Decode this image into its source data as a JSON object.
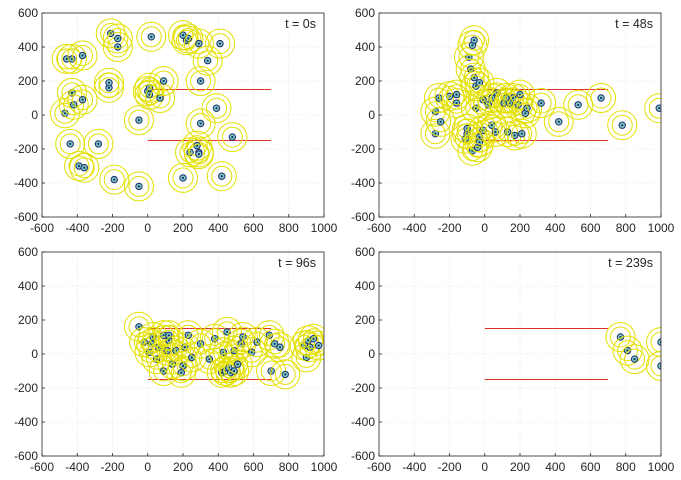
{
  "chart_data": [
    {
      "type": "scatter",
      "title": "t = 0s",
      "xlim": [
        -600,
        1000
      ],
      "ylim": [
        -600,
        600
      ],
      "xticks": [
        "-600",
        "-400",
        "-200",
        "0",
        "200",
        "400",
        "600",
        "800",
        "1000"
      ],
      "yticks": [
        "600",
        "400",
        "200",
        "0",
        "-200",
        "-400",
        "-600"
      ],
      "grid": true,
      "boundary_lines": [
        {
          "x": [
            0,
            700
          ],
          "y": 150
        },
        {
          "x": [
            0,
            700
          ],
          "y": -150
        }
      ],
      "points": [
        [
          -470,
          10
        ],
        [
          -460,
          330
        ],
        [
          -430,
          330
        ],
        [
          -440,
          -170
        ],
        [
          -430,
          130
        ],
        [
          -420,
          60
        ],
        [
          -390,
          -300
        ],
        [
          -360,
          -310
        ],
        [
          -370,
          90
        ],
        [
          -370,
          350
        ],
        [
          -280,
          -170
        ],
        [
          -220,
          160
        ],
        [
          -220,
          190
        ],
        [
          -210,
          480
        ],
        [
          -170,
          400
        ],
        [
          -170,
          450
        ],
        [
          -190,
          -380
        ],
        [
          -50,
          -420
        ],
        [
          -50,
          -30
        ],
        [
          0,
          140
        ],
        [
          10,
          160
        ],
        [
          10,
          120
        ],
        [
          20,
          460
        ],
        [
          70,
          100
        ],
        [
          90,
          200
        ],
        [
          200,
          -370
        ],
        [
          200,
          470
        ],
        [
          220,
          440
        ],
        [
          230,
          450
        ],
        [
          240,
          -220
        ],
        [
          290,
          -220
        ],
        [
          290,
          420
        ],
        [
          280,
          -180
        ],
        [
          290,
          -230
        ],
        [
          300,
          200
        ],
        [
          300,
          -50
        ],
        [
          340,
          320
        ],
        [
          390,
          40
        ],
        [
          410,
          420
        ],
        [
          420,
          -360
        ],
        [
          480,
          -130
        ]
      ]
    },
    {
      "type": "scatter",
      "title": "t = 48s",
      "xlim": [
        -600,
        1000
      ],
      "ylim": [
        -600,
        600
      ],
      "xticks": [
        "-600",
        "-400",
        "-200",
        "0",
        "200",
        "400",
        "600",
        "800",
        "1000"
      ],
      "yticks": [
        "600",
        "400",
        "200",
        "0",
        "-200",
        "-400",
        "-600"
      ],
      "grid": true,
      "boundary_lines": [
        {
          "x": [
            0,
            700
          ],
          "y": 150
        },
        {
          "x": [
            0,
            700
          ],
          "y": -150
        }
      ],
      "points": [
        [
          -280,
          -110
        ],
        [
          -280,
          20
        ],
        [
          -260,
          100
        ],
        [
          -250,
          -40
        ],
        [
          -200,
          110
        ],
        [
          -160,
          70
        ],
        [
          -160,
          120
        ],
        [
          -110,
          -140
        ],
        [
          -90,
          340
        ],
        [
          -70,
          410
        ],
        [
          -60,
          440
        ],
        [
          -70,
          -210
        ],
        [
          -80,
          270
        ],
        [
          -60,
          220
        ],
        [
          -100,
          -110
        ],
        [
          -100,
          -80
        ],
        [
          -50,
          170
        ],
        [
          -50,
          40
        ],
        [
          -40,
          -190
        ],
        [
          -30,
          -130
        ],
        [
          -30,
          -160
        ],
        [
          -30,
          190
        ],
        [
          -10,
          90
        ],
        [
          -10,
          -90
        ],
        [
          20,
          60
        ],
        [
          40,
          100
        ],
        [
          40,
          -60
        ],
        [
          60,
          -100
        ],
        [
          70,
          130
        ],
        [
          110,
          70
        ],
        [
          120,
          100
        ],
        [
          130,
          -100
        ],
        [
          140,
          70
        ],
        [
          160,
          100
        ],
        [
          170,
          -120
        ],
        [
          190,
          60
        ],
        [
          200,
          120
        ],
        [
          210,
          -110
        ],
        [
          230,
          10
        ],
        [
          240,
          40
        ],
        [
          320,
          70
        ],
        [
          420,
          -40
        ],
        [
          530,
          60
        ],
        [
          660,
          100
        ],
        [
          780,
          -60
        ],
        [
          990,
          40
        ]
      ]
    },
    {
      "type": "scatter",
      "title": "t = 96s",
      "xlim": [
        -600,
        1000
      ],
      "ylim": [
        -600,
        600
      ],
      "xticks": [
        "-600",
        "-400",
        "-200",
        "0",
        "200",
        "400",
        "600",
        "800",
        "1000"
      ],
      "yticks": [
        "600",
        "400",
        "200",
        "0",
        "-200",
        "-400",
        "-600"
      ],
      "grid": true,
      "boundary_lines": [
        {
          "x": [
            0,
            700
          ],
          "y": 150
        },
        {
          "x": [
            0,
            700
          ],
          "y": -150
        }
      ],
      "points": [
        [
          -50,
          160
        ],
        [
          -20,
          70
        ],
        [
          10,
          10
        ],
        [
          20,
          60
        ],
        [
          30,
          100
        ],
        [
          50,
          -30
        ],
        [
          60,
          40
        ],
        [
          90,
          110
        ],
        [
          90,
          -100
        ],
        [
          110,
          20
        ],
        [
          120,
          80
        ],
        [
          120,
          110
        ],
        [
          140,
          -60
        ],
        [
          160,
          20
        ],
        [
          190,
          -110
        ],
        [
          200,
          -70
        ],
        [
          210,
          40
        ],
        [
          230,
          110
        ],
        [
          250,
          -20
        ],
        [
          300,
          60
        ],
        [
          350,
          -30
        ],
        [
          380,
          90
        ],
        [
          420,
          -110
        ],
        [
          430,
          10
        ],
        [
          440,
          -100
        ],
        [
          450,
          130
        ],
        [
          460,
          -80
        ],
        [
          470,
          -110
        ],
        [
          490,
          -100
        ],
        [
          490,
          20
        ],
        [
          510,
          -60
        ],
        [
          530,
          60
        ],
        [
          540,
          100
        ],
        [
          590,
          10
        ],
        [
          620,
          70
        ],
        [
          690,
          110
        ],
        [
          700,
          -100
        ],
        [
          720,
          60
        ],
        [
          750,
          40
        ],
        [
          780,
          -120
        ],
        [
          890,
          50
        ],
        [
          900,
          -20
        ],
        [
          910,
          80
        ],
        [
          920,
          40
        ],
        [
          940,
          90
        ],
        [
          970,
          50
        ]
      ]
    },
    {
      "type": "scatter",
      "title": "t = 239s",
      "xlim": [
        -600,
        1000
      ],
      "ylim": [
        -600,
        600
      ],
      "xticks": [
        "-600",
        "-400",
        "-200",
        "0",
        "200",
        "400",
        "600",
        "800",
        "1000"
      ],
      "yticks": [
        "600",
        "400",
        "200",
        "0",
        "-200",
        "-400",
        "-600"
      ],
      "grid": true,
      "boundary_lines": [
        {
          "x": [
            0,
            700
          ],
          "y": 150
        },
        {
          "x": [
            0,
            700
          ],
          "y": -150
        }
      ],
      "points": [
        [
          770,
          100
        ],
        [
          810,
          20
        ],
        [
          850,
          -30
        ],
        [
          1000,
          70
        ],
        [
          1000,
          -70
        ]
      ]
    }
  ],
  "style": {
    "boundary_line_color": "#e0302a",
    "ring_color": "#e3e000",
    "marker_color": "#1a2f6e",
    "marker_fill": "#7fc8c0",
    "grid_color": "#e2e2e2",
    "axis_color": "#262626"
  }
}
